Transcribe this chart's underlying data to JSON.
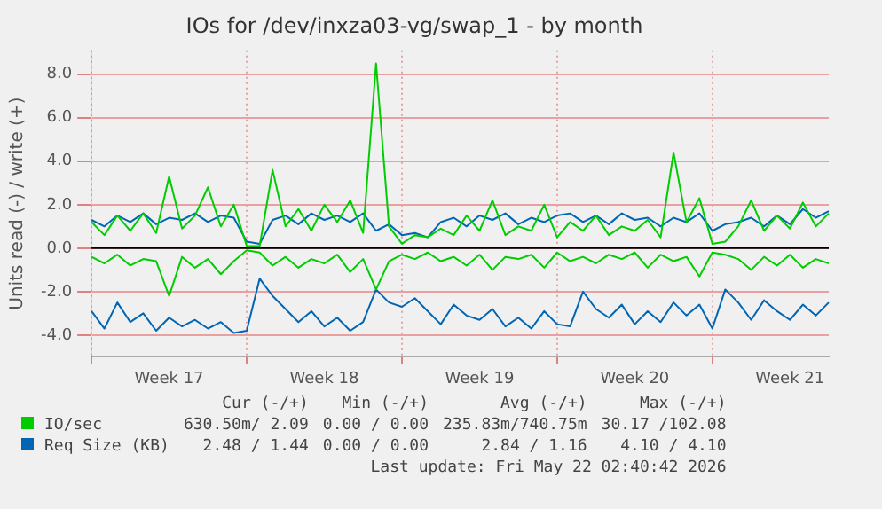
{
  "chart_data": {
    "type": "line",
    "title": "IOs for /dev/inxza03-vg/swap_1 - by month",
    "ylabel": "Units read (-) / write (+)",
    "categories": [
      null,
      null,
      null,
      null,
      null,
      null,
      "Week 17",
      null,
      null,
      null,
      null,
      null,
      null,
      null,
      null,
      null,
      null,
      null,
      "Week 18",
      null,
      null,
      null,
      null,
      null,
      null,
      null,
      null,
      null,
      null,
      null,
      "Week 19",
      null,
      null,
      null,
      null,
      null,
      null,
      null,
      null,
      null,
      null,
      null,
      "Week 20",
      null,
      null,
      null,
      null,
      null,
      null,
      null,
      null,
      null,
      null,
      null,
      "Week 21",
      null,
      null,
      null
    ],
    "series": [
      {
        "color": "#00cc00",
        "values": [
          -0.4,
          -0.7,
          -0.3,
          -0.8,
          -0.5,
          -0.6,
          -2.2,
          -0.4,
          -0.9,
          -0.5,
          -1.2,
          -0.6,
          -0.1,
          -0.2,
          -0.8,
          -0.4,
          -0.9,
          -0.5,
          -0.7,
          -0.3,
          -1.1,
          -0.5,
          -1.9,
          -0.6,
          -0.3,
          -0.5,
          -0.2,
          -0.6,
          -0.4,
          -0.8,
          -0.3,
          -1.0,
          -0.4,
          -0.5,
          -0.3,
          -0.9,
          -0.2,
          -0.6,
          -0.4,
          -0.7,
          -0.3,
          -0.5,
          -0.2,
          -0.9,
          -0.3,
          -0.6,
          -0.4,
          -1.3,
          -0.2,
          -0.3,
          -0.5,
          -1.0,
          -0.4,
          -0.8,
          -0.3,
          -0.9,
          -0.5,
          -0.7
        ]
      },
      {
        "name": "IO/sec",
        "color": "#00cc00",
        "values": [
          1.2,
          0.6,
          1.5,
          0.8,
          1.6,
          0.7,
          3.3,
          0.9,
          1.5,
          2.8,
          1.0,
          2.0,
          0.1,
          0.1,
          3.6,
          1.0,
          1.8,
          0.8,
          2.0,
          1.2,
          2.2,
          0.7,
          8.5,
          1.0,
          0.2,
          0.6,
          0.5,
          0.9,
          0.6,
          1.5,
          0.8,
          2.2,
          0.6,
          1.0,
          0.8,
          2.0,
          0.5,
          1.2,
          0.8,
          1.5,
          0.6,
          1.0,
          0.8,
          1.3,
          0.5,
          4.4,
          1.2,
          2.3,
          0.2,
          0.3,
          1.0,
          2.2,
          0.8,
          1.5,
          0.9,
          2.1,
          1.0,
          1.6
        ]
      },
      {
        "color": "#0066b3",
        "values": [
          -2.9,
          -3.7,
          -2.5,
          -3.4,
          -3.0,
          -3.8,
          -3.2,
          -3.6,
          -3.3,
          -3.7,
          -3.4,
          -3.9,
          -3.8,
          -1.4,
          -2.2,
          -2.8,
          -3.4,
          -2.9,
          -3.6,
          -3.2,
          -3.8,
          -3.4,
          -1.9,
          -2.5,
          -2.7,
          -2.3,
          -2.9,
          -3.5,
          -2.6,
          -3.1,
          -3.3,
          -2.8,
          -3.6,
          -3.2,
          -3.7,
          -2.9,
          -3.5,
          -3.6,
          -2.0,
          -2.8,
          -3.2,
          -2.6,
          -3.5,
          -2.9,
          -3.4,
          -2.5,
          -3.1,
          -2.6,
          -3.7,
          -1.9,
          -2.5,
          -3.3,
          -2.4,
          -2.9,
          -3.3,
          -2.6,
          -3.1,
          -2.5
        ]
      },
      {
        "name": "Req Size (KB)",
        "color": "#0066b3",
        "values": [
          1.3,
          1.0,
          1.5,
          1.2,
          1.6,
          1.1,
          1.4,
          1.3,
          1.6,
          1.2,
          1.5,
          1.4,
          0.3,
          0.2,
          1.3,
          1.5,
          1.1,
          1.6,
          1.3,
          1.5,
          1.2,
          1.6,
          0.8,
          1.1,
          0.6,
          0.7,
          0.5,
          1.2,
          1.4,
          1.0,
          1.5,
          1.3,
          1.6,
          1.1,
          1.4,
          1.2,
          1.5,
          1.6,
          1.2,
          1.5,
          1.1,
          1.6,
          1.3,
          1.4,
          1.0,
          1.4,
          1.2,
          1.6,
          0.8,
          1.1,
          1.2,
          1.4,
          1.0,
          1.5,
          1.1,
          1.8,
          1.4,
          1.7
        ]
      }
    ],
    "ylim": [
      -5,
      9.1
    ],
    "yticks": [
      {
        "value": -4,
        "label": "-4.0"
      },
      {
        "value": -2,
        "label": "-2.0"
      },
      {
        "value": 0,
        "label": "0.0"
      },
      {
        "value": 2,
        "label": "2.0"
      },
      {
        "value": 4,
        "label": "4.0"
      },
      {
        "value": 6,
        "label": "6.0"
      },
      {
        "value": 8,
        "label": "8.0"
      }
    ],
    "ref_lines": [
      {
        "axis": "y",
        "value": 0,
        "color": "#000000"
      }
    ],
    "grid": true,
    "legend": "bottom",
    "marker": "none",
    "line_style": "solid",
    "annotations": [
      "Cur (-/+)",
      "Min (-/+)",
      "Avg (-/+)",
      "Max (-/+)",
      "630.50m/ 2.09",
      "0.00 / 0.00",
      "235.83m/740.75m",
      "30.17 /102.08",
      "2.48 / 1.44",
      "0.00 / 0.00",
      "2.84 / 1.16",
      "4.10 / 4.10",
      "Last update: Fri May 22 02:40:42 2026"
    ]
  }
}
